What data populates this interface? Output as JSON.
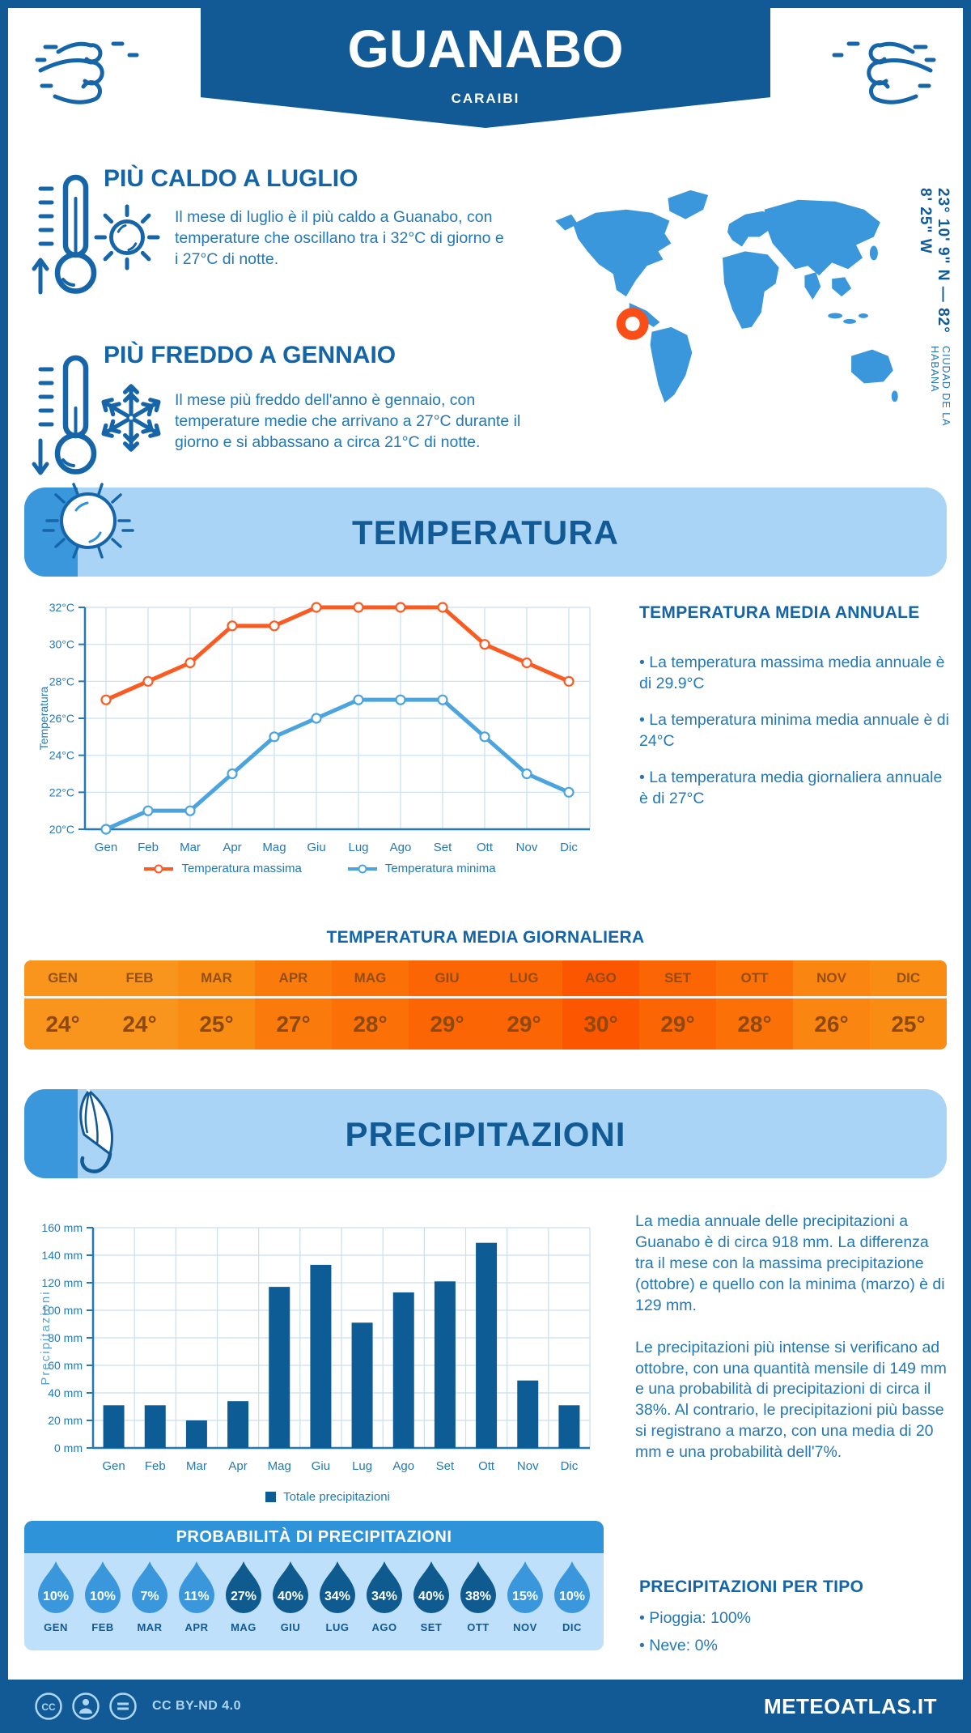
{
  "header": {
    "title": "GUANABO",
    "subtitle": "CARAIBI"
  },
  "location": {
    "coordinates": "23° 10' 9\" N — 82° 8' 25\" W",
    "region": "CIUDAD DE LA HABANA"
  },
  "highlights": {
    "hot": {
      "title": "PIÙ CALDO A LUGLIO",
      "text": "Il mese di luglio è il più caldo a Guanabo, con temperature che oscillano tra i 32°C di giorno e i 27°C di notte."
    },
    "cold": {
      "title": "PIÙ FREDDO A GENNAIO",
      "text": "Il mese più freddo dell'anno è gennaio, con temperature medie che arrivano a 27°C durante il giorno e si abbassano a circa 21°C di notte."
    }
  },
  "temperature_section": {
    "banner": "TEMPERATURA",
    "annual_title": "TEMPERATURA MEDIA ANNUALE",
    "annual_bullets": [
      "• La temperatura massima media annuale è di 29.9°C",
      "• La temperatura minima media annuale è di 24°C",
      "• La temperatura media giornaliera annuale è di 27°C"
    ],
    "daily_title": "TEMPERATURA MEDIA GIORNALIERA",
    "monthly": {
      "months": [
        "GEN",
        "FEB",
        "MAR",
        "APR",
        "MAG",
        "GIU",
        "LUG",
        "AGO",
        "SET",
        "OTT",
        "NOV",
        "DIC"
      ],
      "values": [
        "24°",
        "24°",
        "25°",
        "27°",
        "28°",
        "29°",
        "29°",
        "30°",
        "29°",
        "28°",
        "26°",
        "25°"
      ],
      "colors": [
        "#F9941C",
        "#F9941C",
        "#F98D14",
        "#FA7B0C",
        "#FB7108",
        "#FB6504",
        "#FB6504",
        "#FC5600",
        "#FB6504",
        "#FB7108",
        "#FA8510",
        "#F98D14"
      ],
      "text_color": "#8C4A12"
    }
  },
  "precipitation_section": {
    "banner": "PRECIPITAZIONI",
    "paragraphs": [
      "La media annuale delle precipitazioni a Guanabo è di circa 918 mm. La differenza tra il mese con la massima precipitazione (ottobre) e quello con la minima (marzo) è di 129 mm.",
      "Le precipitazioni più intense si verificano ad ottobre, con una quantità mensile di 149 mm e una probabilità di precipitazioni di circa il 38%. Al contrario, le precipitazioni più basse si registrano a marzo, con una media di 20 mm e una probabilità dell'7%."
    ],
    "probability": {
      "title": "PROBABILITÀ DI PRECIPITAZIONI",
      "months": [
        "GEN",
        "FEB",
        "MAR",
        "APR",
        "MAG",
        "GIU",
        "LUG",
        "AGO",
        "SET",
        "OTT",
        "NOV",
        "DIC"
      ],
      "values": [
        "10%",
        "10%",
        "7%",
        "11%",
        "27%",
        "40%",
        "34%",
        "34%",
        "40%",
        "38%",
        "15%",
        "10%"
      ],
      "dark_months": [
        false,
        false,
        false,
        false,
        true,
        true,
        true,
        true,
        true,
        true,
        false,
        false
      ],
      "light_color": "#3A97DC",
      "dark_color": "#0F5A8E"
    },
    "per_tipo": {
      "title": "PRECIPITAZIONI PER TIPO",
      "bullets": [
        "• Pioggia: 100%",
        "• Neve: 0%"
      ]
    }
  },
  "chart_data": [
    {
      "type": "line",
      "title": "Temperatura media mensile",
      "categories": [
        "Gen",
        "Feb",
        "Mar",
        "Apr",
        "Mag",
        "Giu",
        "Lug",
        "Ago",
        "Set",
        "Ott",
        "Nov",
        "Dic"
      ],
      "series": [
        {
          "name": "Temperatura massima",
          "color": "#F95B22",
          "values": [
            27,
            28,
            29,
            31,
            31,
            32,
            32,
            32,
            32,
            30,
            29,
            28
          ]
        },
        {
          "name": "Temperatura minima",
          "color": "#4BA4DE",
          "values": [
            20,
            21,
            21,
            23,
            25,
            26,
            27,
            27,
            27,
            25,
            23,
            22
          ]
        }
      ],
      "xlabel": "",
      "ylabel": "Temperatura",
      "ylim": [
        20,
        32
      ],
      "ytick_step": 2,
      "ytick_suffix": "°C",
      "grid": true,
      "legend_position": "bottom"
    },
    {
      "type": "bar",
      "title": "Totale precipitazioni mensili",
      "categories": [
        "Gen",
        "Feb",
        "Mar",
        "Apr",
        "Mag",
        "Giu",
        "Lug",
        "Ago",
        "Set",
        "Ott",
        "Nov",
        "Dic"
      ],
      "series": [
        {
          "name": "Totale precipitazioni",
          "color": "#0E5C96",
          "values": [
            31,
            31,
            20,
            34,
            117,
            133,
            91,
            113,
            121,
            149,
            49,
            31
          ]
        }
      ],
      "xlabel": "",
      "ylabel": "Precipitazioni",
      "ylim": [
        0,
        160
      ],
      "ytick_step": 20,
      "ytick_suffix": " mm",
      "grid": true,
      "legend_position": "bottom"
    }
  ],
  "footer": {
    "license": "CC BY-ND 4.0",
    "brand": "METEOATLAS.IT"
  },
  "icons": {
    "wind-icon": "decorative wind swirl",
    "thermometer-up-icon": "thermometer with up arrow",
    "thermometer-down-icon": "thermometer with down arrow",
    "sun-icon": "outline sun",
    "snowflake-icon": "snowflake",
    "sun-banner-icon": "white sun on banner",
    "umbrella-icon": "white umbrella on banner",
    "map-marker-icon": "orange ring marker",
    "droplet-icon": "rain droplet",
    "cc-icon": "creative commons",
    "cc-person-icon": "attribution person",
    "cc-nd-icon": "no derivatives equals sign"
  },
  "colors": {
    "primary_dark": "#115A96",
    "heading": "#1464A8",
    "body_text": "#2478B4",
    "accent_medium": "#3A97DC",
    "banner_light": "#A9D4F5",
    "panel_light": "#BFE0FA",
    "max_line": "#F95B22",
    "min_line": "#4BA4DE",
    "bar": "#0E5C96",
    "marker_orange": "#F94E17"
  }
}
